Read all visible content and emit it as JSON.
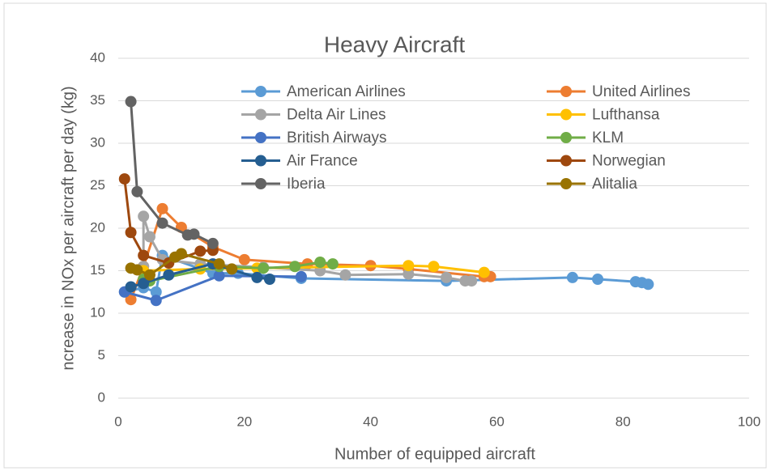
{
  "chart_data": {
    "type": "line",
    "title": "Heavy Aircraft",
    "xlabel": "Number of equipped aircraft",
    "ylabel": "ncrease in NOx per aircraft per day (kg)",
    "xlim": [
      0,
      100
    ],
    "xticks": [
      0,
      20,
      40,
      60,
      80,
      100
    ],
    "ylim": [
      0,
      40
    ],
    "yticks": [
      0,
      5,
      10,
      15,
      20,
      25,
      30,
      35,
      40
    ],
    "grid": true,
    "series": [
      {
        "name": "American Airlines",
        "color": "#5b9bd5",
        "x": [
          1,
          4,
          6,
          7,
          15,
          19,
          29,
          52,
          72,
          76,
          82,
          83,
          84
        ],
        "values": [
          12.5,
          13,
          12.5,
          16.8,
          14.7,
          14.7,
          14.1,
          13.8,
          14.2,
          14,
          13.7,
          13.6,
          13.4
        ]
      },
      {
        "name": "United Airlines",
        "color": "#ed7d31",
        "x": [
          2,
          4,
          7,
          10,
          15,
          20,
          30,
          40,
          46,
          58,
          59
        ],
        "values": [
          11.6,
          15.5,
          22.3,
          20.1,
          17.8,
          16.3,
          15.8,
          15.6,
          15.2,
          14.3,
          14.3
        ]
      },
      {
        "name": "Delta Air Lines",
        "color": "#a5a5a5",
        "x": [
          4,
          4,
          5,
          7,
          13,
          23,
          32,
          36,
          46,
          52,
          55,
          56
        ],
        "values": [
          15.5,
          21.4,
          19,
          16.3,
          15.8,
          15.4,
          15,
          14.5,
          14.6,
          14.2,
          13.8,
          13.8
        ]
      },
      {
        "name": "Lufthansa",
        "color": "#ffc000",
        "x": [
          4,
          13,
          22,
          46,
          50,
          58
        ],
        "values": [
          15,
          15.2,
          15.3,
          15.6,
          15.5,
          14.8
        ]
      },
      {
        "name": "British Airways",
        "color": "#4472c4",
        "x": [
          1,
          6,
          16,
          29
        ],
        "values": [
          12.5,
          11.5,
          14.4,
          14.3
        ]
      },
      {
        "name": "KLM",
        "color": "#70ad47",
        "x": [
          4,
          5,
          16,
          23,
          28,
          32,
          34
        ],
        "values": [
          14,
          13.8,
          15.5,
          15.3,
          15.5,
          16,
          15.8
        ]
      },
      {
        "name": "Air France",
        "color": "#255e91",
        "x": [
          2,
          4,
          8,
          15,
          22,
          24
        ],
        "values": [
          13.1,
          13.5,
          14.5,
          15.8,
          14.2,
          14
        ]
      },
      {
        "name": "Norwegian",
        "color": "#9e480e",
        "x": [
          1,
          2,
          4,
          8,
          13,
          15
        ],
        "values": [
          25.8,
          19.5,
          16.8,
          15.9,
          17.3,
          17.4
        ]
      },
      {
        "name": "Iberia",
        "color": "#636363",
        "x": [
          2,
          3,
          7,
          11,
          12,
          15
        ],
        "values": [
          34.9,
          24.3,
          20.6,
          19.2,
          19.3,
          18.2
        ]
      },
      {
        "name": "Alitalia",
        "color": "#997300",
        "x": [
          2,
          3,
          5,
          9,
          10,
          16,
          18
        ],
        "values": [
          15.3,
          15.1,
          14.5,
          16.6,
          17,
          15.8,
          15.2
        ]
      }
    ]
  }
}
